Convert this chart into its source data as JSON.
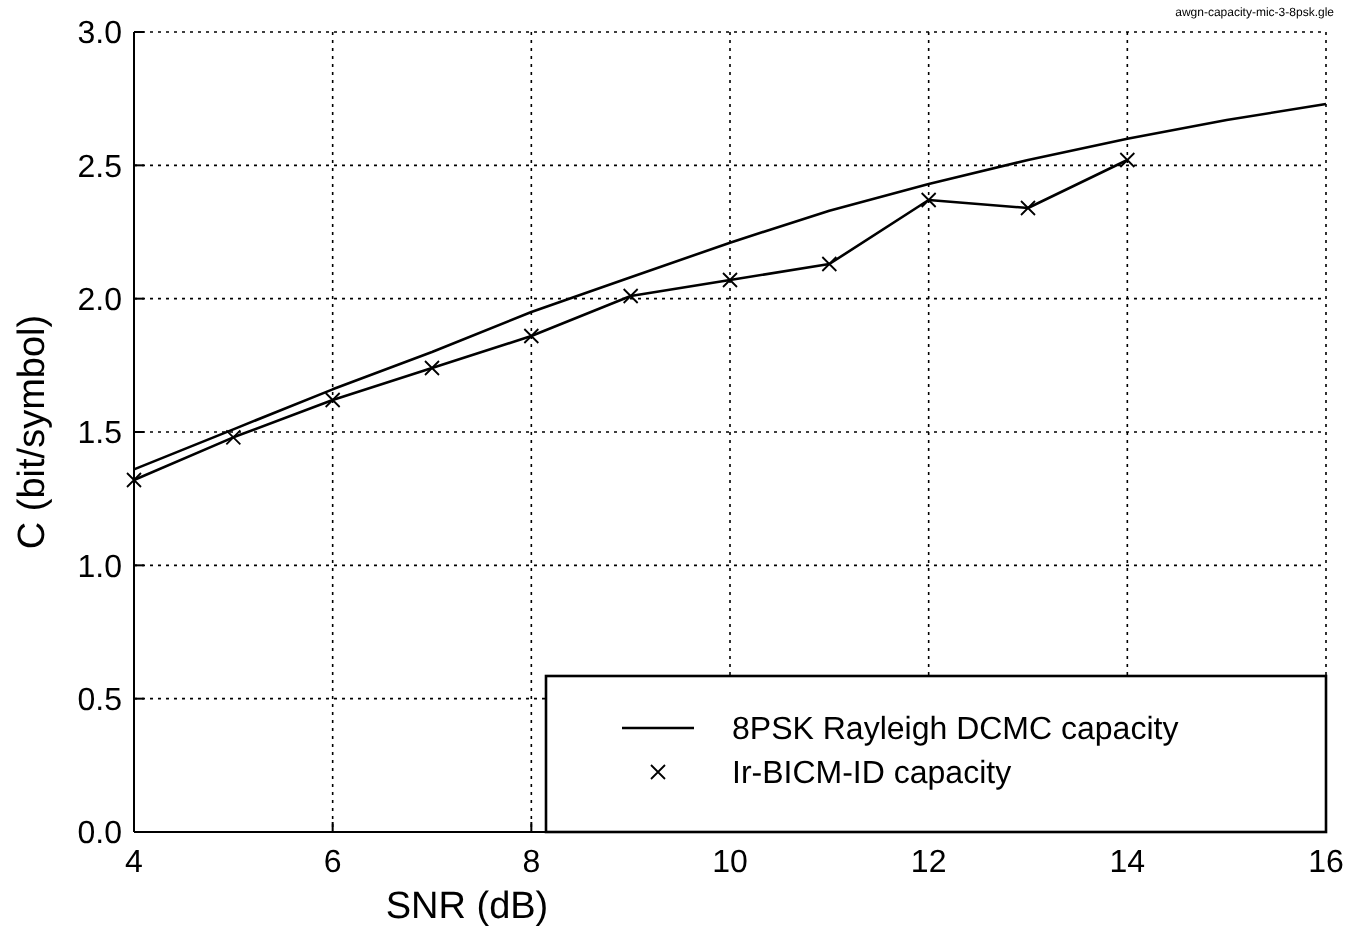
{
  "chart_data": {
    "type": "line",
    "xlabel": "SNR (dB)",
    "ylabel": "C (bit/symbol)",
    "annotations": [
      "awgn-capacity-mic-3-8psk.gle"
    ],
    "xlim": [
      4,
      16
    ],
    "xticks": [
      4,
      6,
      8,
      10,
      12,
      14,
      16
    ],
    "ylim": [
      0,
      3
    ],
    "yticks": [
      {
        "value": 0,
        "label": "0.0"
      },
      {
        "value": 0.5,
        "label": "0.5"
      },
      {
        "value": 1,
        "label": "1.0"
      },
      {
        "value": 1.5,
        "label": "1.5"
      },
      {
        "value": 2,
        "label": "2.0"
      },
      {
        "value": 2.5,
        "label": "2.5"
      },
      {
        "value": 3,
        "label": "3.0"
      }
    ],
    "grid": true,
    "legend": "bottom right",
    "line_style": "solid",
    "series": [
      {
        "name": "8PSK Rayleigh DCMC capacity",
        "color": "#000000",
        "marker": "none",
        "x": [
          4,
          5,
          6,
          7,
          8,
          9,
          10,
          11,
          12,
          13,
          14,
          15,
          16
        ],
        "values": [
          1.36,
          1.51,
          1.66,
          1.8,
          1.95,
          2.08,
          2.21,
          2.33,
          2.43,
          2.52,
          2.6,
          2.67,
          2.73
        ]
      },
      {
        "name": "Ir-BICM-ID capacity",
        "color": "#000000",
        "marker": "cross",
        "x": [
          4,
          5,
          6,
          7,
          8,
          9,
          10,
          11,
          12,
          13,
          14
        ],
        "values": [
          1.32,
          1.48,
          1.62,
          1.74,
          1.86,
          2.01,
          2.07,
          2.13,
          2.37,
          2.34,
          2.52
        ]
      }
    ]
  }
}
